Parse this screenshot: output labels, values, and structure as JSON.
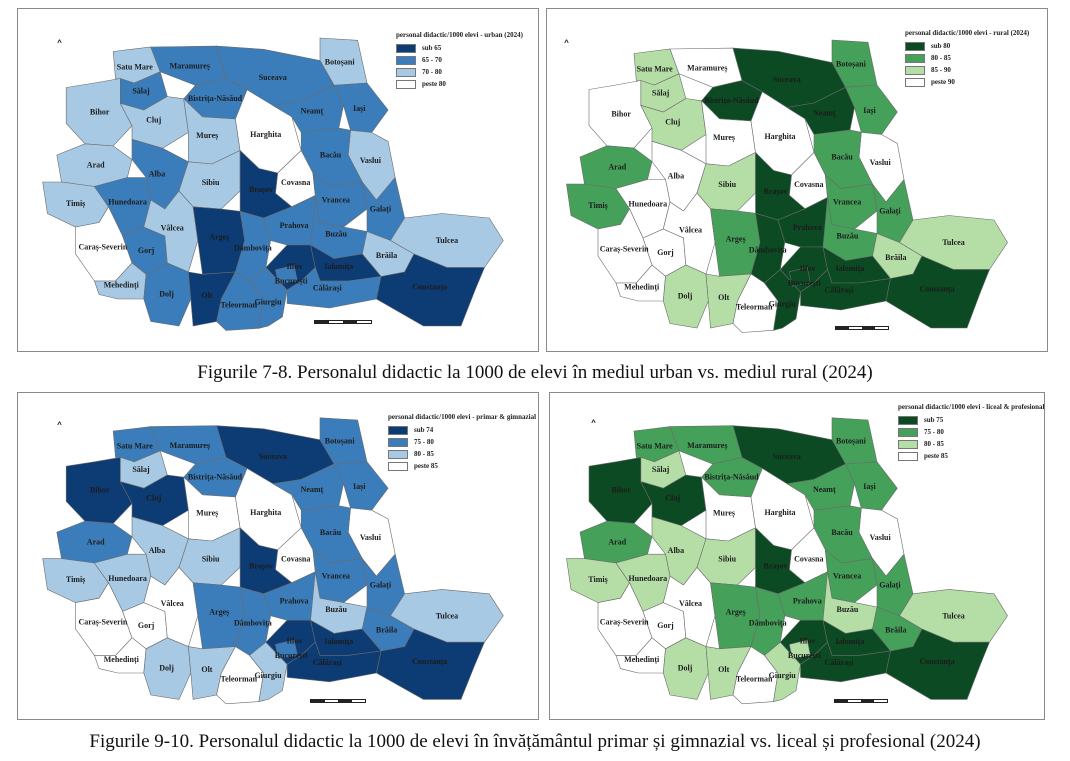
{
  "captions": {
    "top": "Figurile 7-8. Personalul didactic la 1000 de elevi în mediul urban vs. mediul rural (2024)",
    "bottom": "Figurile 9-10. Personalul didactic la 1000 de elevi în învățământul primar și gimnazial vs. liceal și profesional (2024)"
  },
  "county_names": {
    "SM": "Satu Mare",
    "MM": "Maramureș",
    "BT": "Botoșani",
    "SJ": "Sălaj",
    "BN": "Bistrița-Năsăud",
    "SV": "Suceava",
    "IS": "Iași",
    "BH": "Bihor",
    "CJ": "Cluj",
    "MS": "Mureș",
    "HR": "Harghita",
    "NT": "Neamț",
    "VS": "Vaslui",
    "BC": "Bacău",
    "AR": "Arad",
    "AB": "Alba",
    "CV": "Covasna",
    "TM": "Timiș",
    "HD": "Hunedoara",
    "SB": "Sibiu",
    "BV": "Brașov",
    "VN": "Vrancea",
    "GL": "Galați",
    "CS": "Caraș-Severin",
    "GJ": "Gorj",
    "VL": "Vâlcea",
    "AG": "Argeș",
    "PH": "Prahova",
    "BZ": "Buzău",
    "BR": "Brăila",
    "TL": "Tulcea",
    "DB": "Dâmbovița",
    "MH": "Mehedinți",
    "DJ": "Dolj",
    "OT": "Olt",
    "TR": "Teleorman",
    "GR": "Giurgiu",
    "IF": "Ilfov",
    "B": "București",
    "IL": "Ialomița",
    "CL": "Călărași",
    "CT": "Constanța"
  },
  "maps": [
    {
      "id": "urban",
      "legend_title": "personal didactic/1000 elevi - urban (2024)",
      "classes": [
        {
          "label": "sub 65",
          "color": "#0d3b73"
        },
        {
          "label": "65 - 70",
          "color": "#3b7dbb"
        },
        {
          "label": "70 - 80",
          "color": "#a7c9e4"
        },
        {
          "label": "peste 80",
          "color": "#ffffff"
        }
      ],
      "county_class": {
        "SM": 2,
        "MM": 1,
        "BT": 2,
        "SJ": 1,
        "BN": 1,
        "SV": 1,
        "IS": 1,
        "BH": 2,
        "CJ": 2,
        "MS": 2,
        "HR": 3,
        "NT": 1,
        "VS": 2,
        "BC": 1,
        "AR": 2,
        "AB": 1,
        "CV": 3,
        "TM": 2,
        "HD": 1,
        "SB": 2,
        "BV": 0,
        "VN": 1,
        "GL": 1,
        "CS": 3,
        "GJ": 1,
        "VL": 2,
        "AG": 0,
        "PH": 1,
        "BZ": 1,
        "BR": 2,
        "TL": 2,
        "DB": 1,
        "MH": 2,
        "DJ": 1,
        "OT": 0,
        "TR": 1,
        "GR": 1,
        "IF": 0,
        "B": 1,
        "IL": 0,
        "CL": 1,
        "CT": 0
      }
    },
    {
      "id": "rural",
      "legend_title": "personal didactic/1000 elevi - rural (2024)",
      "classes": [
        {
          "label": "sub 80",
          "color": "#0b4a22"
        },
        {
          "label": "80 - 85",
          "color": "#45a05a"
        },
        {
          "label": "85 - 90",
          "color": "#b5dea7"
        },
        {
          "label": "peste 90",
          "color": "#ffffff"
        }
      ],
      "county_class": {
        "SM": 2,
        "MM": 3,
        "BT": 1,
        "SJ": 2,
        "BN": 0,
        "SV": 0,
        "IS": 1,
        "BH": 3,
        "CJ": 2,
        "MS": 3,
        "HR": 3,
        "NT": 0,
        "VS": 3,
        "BC": 1,
        "AR": 1,
        "AB": 3,
        "CV": 3,
        "TM": 1,
        "HD": 3,
        "SB": 2,
        "BV": 0,
        "VN": 1,
        "GL": 1,
        "CS": 3,
        "GJ": 3,
        "VL": 3,
        "AG": 1,
        "PH": 0,
        "BZ": 1,
        "BR": 2,
        "TL": 2,
        "DB": 0,
        "MH": 3,
        "DJ": 2,
        "OT": 2,
        "TR": 3,
        "GR": 0,
        "IF": 0,
        "B": 0,
        "IL": 0,
        "CL": 0,
        "CT": 0
      }
    },
    {
      "id": "primar",
      "legend_title": "personal didactic/1000 elevi - primar & gimnazial (2024)",
      "classes": [
        {
          "label": "sub 74",
          "color": "#0d3b73"
        },
        {
          "label": "75 - 80",
          "color": "#3b7dbb"
        },
        {
          "label": "80 - 85",
          "color": "#a7c9e4"
        },
        {
          "label": "peste 85",
          "color": "#ffffff"
        }
      ],
      "county_class": {
        "SM": 1,
        "MM": 1,
        "BT": 1,
        "SJ": 2,
        "BN": 1,
        "SV": 0,
        "IS": 1,
        "BH": 0,
        "CJ": 0,
        "MS": 3,
        "HR": 3,
        "NT": 1,
        "VS": 3,
        "BC": 1,
        "AR": 1,
        "AB": 2,
        "CV": 3,
        "TM": 2,
        "HD": 2,
        "SB": 2,
        "BV": 0,
        "VN": 1,
        "GL": 1,
        "CS": 3,
        "GJ": 3,
        "VL": 3,
        "AG": 1,
        "PH": 1,
        "BZ": 2,
        "BR": 1,
        "TL": 2,
        "DB": 1,
        "MH": 3,
        "DJ": 2,
        "OT": 2,
        "TR": 3,
        "GR": 2,
        "IF": 0,
        "B": 1,
        "IL": 0,
        "CL": 0,
        "CT": 0
      }
    },
    {
      "id": "liceal",
      "legend_title": "personal didactic/1000 elevi - liceal & profesional (2024)",
      "classes": [
        {
          "label": "sub 75",
          "color": "#0b4a22"
        },
        {
          "label": "75 - 80",
          "color": "#45a05a"
        },
        {
          "label": "80 - 85",
          "color": "#b5dea7"
        },
        {
          "label": "peste 85",
          "color": "#ffffff"
        }
      ],
      "county_class": {
        "SM": 1,
        "MM": 1,
        "BT": 1,
        "SJ": 2,
        "BN": 1,
        "SV": 0,
        "IS": 1,
        "BH": 0,
        "CJ": 0,
        "MS": 3,
        "HR": 3,
        "NT": 1,
        "VS": 3,
        "BC": 1,
        "AR": 1,
        "AB": 2,
        "CV": 3,
        "TM": 2,
        "HD": 2,
        "SB": 2,
        "BV": 0,
        "VN": 1,
        "GL": 1,
        "CS": 3,
        "GJ": 3,
        "VL": 3,
        "AG": 1,
        "PH": 1,
        "BZ": 2,
        "BR": 1,
        "TL": 2,
        "DB": 1,
        "MH": 3,
        "DJ": 2,
        "OT": 2,
        "TR": 3,
        "GR": 2,
        "IF": 0,
        "B": 2,
        "IL": 0,
        "CL": 0,
        "CT": 0
      }
    }
  ]
}
